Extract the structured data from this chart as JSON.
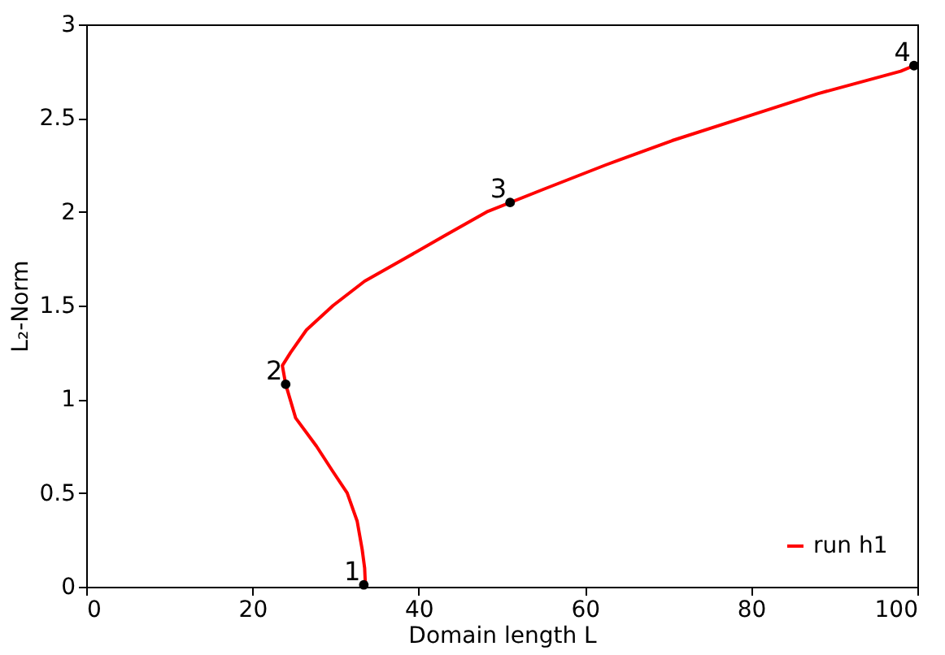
{
  "chart_data": {
    "type": "line",
    "xlabel": "Domain length L",
    "ylabel": "L₂-Norm",
    "xlim": [
      0,
      100
    ],
    "ylim": [
      0,
      3
    ],
    "xticks": [
      0,
      20,
      40,
      60,
      80,
      100
    ],
    "yticks": [
      0,
      0.5,
      1,
      1.5,
      2,
      2.5,
      3
    ],
    "grid": false,
    "legend": "bottom right",
    "line_style": "solid",
    "series": [
      {
        "name": "run h1",
        "color": "#ff0000",
        "x": [
          33.6,
          33.5,
          33.2,
          32.6,
          31.4,
          29.6,
          27.7,
          25.2,
          24.0,
          23.6,
          24.6,
          26.5,
          29.7,
          33.5,
          38.3,
          43.0,
          48.2,
          55.0,
          62.5,
          70.5,
          78.9,
          88.0,
          98.0,
          99.6
        ],
        "values": [
          0.0,
          0.1,
          0.2,
          0.35,
          0.5,
          0.62,
          0.75,
          0.9,
          1.08,
          1.18,
          1.25,
          1.37,
          1.5,
          1.63,
          1.75,
          1.87,
          2.0,
          2.12,
          2.25,
          2.38,
          2.5,
          2.63,
          2.75,
          2.78
        ]
      },
      {
        "color": "#000000",
        "type": "scatter",
        "marker": "circle",
        "x": [
          33.4,
          24.0,
          51.0,
          99.6
        ],
        "values": [
          0.01,
          1.08,
          2.05,
          2.78
        ]
      }
    ],
    "annotations": [
      {
        "text": "1",
        "x": 33.4,
        "y": 0.01
      },
      {
        "text": "2",
        "x": 24.0,
        "y": 1.08
      },
      {
        "text": "3",
        "x": 51.0,
        "y": 2.05
      },
      {
        "text": "4",
        "x": 99.6,
        "y": 2.78
      }
    ]
  }
}
